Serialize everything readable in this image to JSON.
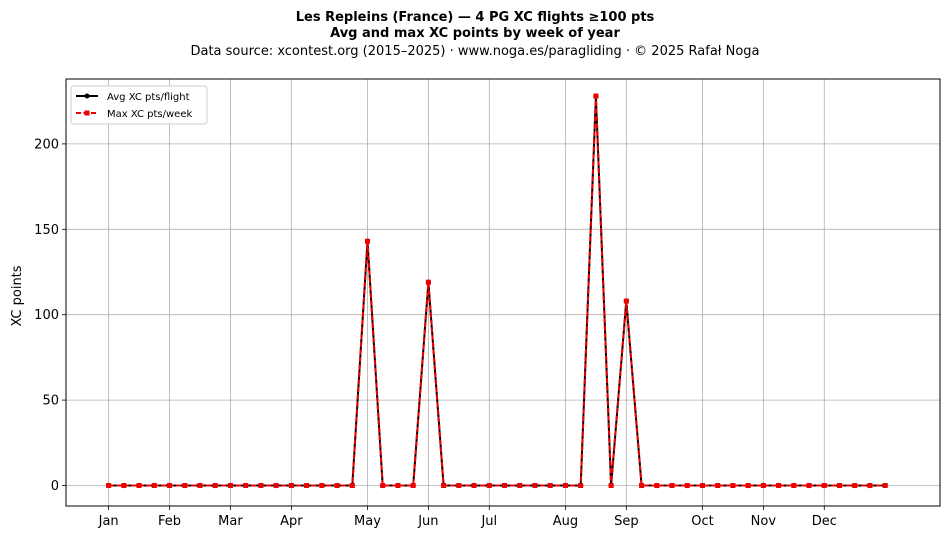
{
  "chart_data": {
    "type": "line",
    "title_line1": "Les Repleins (France)  —  4 PG XC flights ≥100 pts",
    "title_line2": "Avg and max XC points by week of year",
    "subtitle": "Data source: xcontest.org (2015–2025)  ·  www.noga.es/paragliding  ·  © 2025 Rafał Noga",
    "ylabel": "XC points",
    "xlabel": "",
    "ylim": [
      -12,
      238
    ],
    "xlim": [
      -2.8,
      54.6
    ],
    "yticks": [
      0,
      50,
      100,
      150,
      200
    ],
    "grid": true,
    "legend_position": "top-left",
    "month_ticks": [
      {
        "label": "Jan",
        "week": 0
      },
      {
        "label": "Feb",
        "week": 4
      },
      {
        "label": "Mar",
        "week": 8
      },
      {
        "label": "Apr",
        "week": 12
      },
      {
        "label": "May",
        "week": 17
      },
      {
        "label": "Jun",
        "week": 21
      },
      {
        "label": "Jul",
        "week": 25
      },
      {
        "label": "Aug",
        "week": 30
      },
      {
        "label": "Sep",
        "week": 34
      },
      {
        "label": "Oct",
        "week": 39
      },
      {
        "label": "Nov",
        "week": 43
      },
      {
        "label": "Dec",
        "week": 47
      }
    ],
    "x": [
      0,
      1,
      2,
      3,
      4,
      5,
      6,
      7,
      8,
      9,
      10,
      11,
      12,
      13,
      14,
      15,
      16,
      17,
      18,
      19,
      20,
      21,
      22,
      23,
      24,
      25,
      26,
      27,
      28,
      29,
      30,
      31,
      32,
      33,
      34,
      35,
      36,
      37,
      38,
      39,
      40,
      41,
      42,
      43,
      44,
      45,
      46,
      47,
      48,
      49,
      50,
      51
    ],
    "series": [
      {
        "name": "Avg XC pts/flight",
        "color": "#000000",
        "style": "solid",
        "marker": "circle",
        "values": [
          0,
          0,
          0,
          0,
          0,
          0,
          0,
          0,
          0,
          0,
          0,
          0,
          0,
          0,
          0,
          0,
          0,
          143,
          0,
          0,
          0,
          119,
          0,
          0,
          0,
          0,
          0,
          0,
          0,
          0,
          0,
          0,
          228,
          0,
          108,
          0,
          0,
          0,
          0,
          0,
          0,
          0,
          0,
          0,
          0,
          0,
          0,
          0,
          0,
          0,
          0,
          0
        ]
      },
      {
        "name": "Max XC pts/week",
        "color": "#ee0000",
        "style": "dashed",
        "marker": "square",
        "values": [
          0,
          0,
          0,
          0,
          0,
          0,
          0,
          0,
          0,
          0,
          0,
          0,
          0,
          0,
          0,
          0,
          0,
          143,
          0,
          0,
          0,
          119,
          0,
          0,
          0,
          0,
          0,
          0,
          0,
          0,
          0,
          0,
          228,
          0,
          108,
          0,
          0,
          0,
          0,
          0,
          0,
          0,
          0,
          0,
          0,
          0,
          0,
          0,
          0,
          0,
          0,
          0
        ]
      }
    ]
  }
}
